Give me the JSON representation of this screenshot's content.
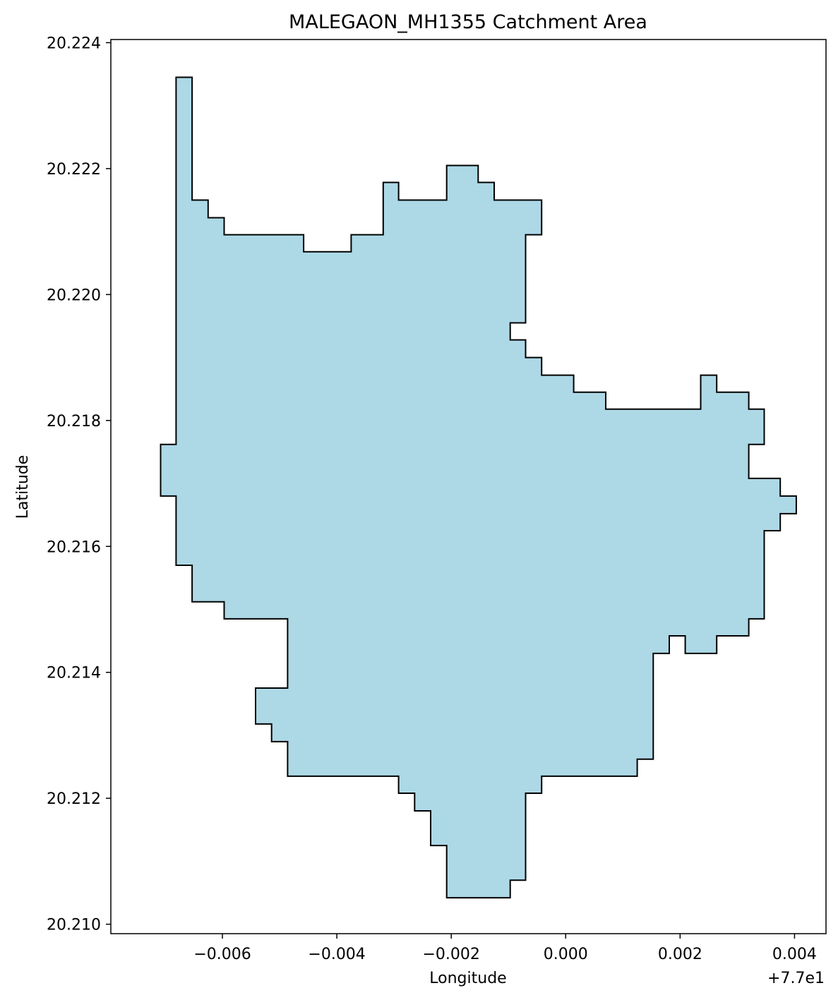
{
  "chart_data": {
    "type": "area",
    "title": "MALEGAON_MH1355 Catchment Area",
    "xlabel": "Longitude",
    "ylabel": "Latitude",
    "x_offset_label": "+7.7e1",
    "xlim": [
      -0.00795,
      0.00455
    ],
    "ylim": [
      20.20985,
      20.22405
    ],
    "x_ticks": [
      -0.006,
      -0.004,
      -0.002,
      0.0,
      0.002,
      0.004
    ],
    "x_tick_labels": [
      "−0.006",
      "−0.004",
      "−0.002",
      "0.000",
      "0.002",
      "0.004"
    ],
    "y_ticks": [
      20.21,
      20.212,
      20.214,
      20.216,
      20.218,
      20.22,
      20.222,
      20.224
    ],
    "y_tick_labels": [
      "20.210",
      "20.212",
      "20.214",
      "20.216",
      "20.218",
      "20.220",
      "20.222",
      "20.224"
    ],
    "fill_color": "#add8e6",
    "edge_color": "#000000",
    "grid": false,
    "polygon": [
      [
        -0.00681,
        20.22345
      ],
      [
        -0.00653,
        20.22345
      ],
      [
        -0.00653,
        20.2215
      ],
      [
        -0.00625,
        20.2215
      ],
      [
        -0.00625,
        20.22122
      ],
      [
        -0.00597,
        20.22122
      ],
      [
        -0.00597,
        20.22095
      ],
      [
        -0.00458,
        20.22095
      ],
      [
        -0.00458,
        20.22068
      ],
      [
        -0.00375,
        20.22068
      ],
      [
        -0.00375,
        20.22095
      ],
      [
        -0.00319,
        20.22095
      ],
      [
        -0.00319,
        20.22178
      ],
      [
        -0.00292,
        20.22178
      ],
      [
        -0.00292,
        20.2215
      ],
      [
        -0.00208,
        20.2215
      ],
      [
        -0.00208,
        20.22205
      ],
      [
        -0.00153,
        20.22205
      ],
      [
        -0.00153,
        20.22178
      ],
      [
        -0.00125,
        20.22178
      ],
      [
        -0.00125,
        20.2215
      ],
      [
        -0.00042,
        20.2215
      ],
      [
        -0.00042,
        20.22095
      ],
      [
        -0.0007,
        20.22095
      ],
      [
        -0.0007,
        20.21955
      ],
      [
        -0.00097,
        20.21955
      ],
      [
        -0.00097,
        20.21928
      ],
      [
        -0.0007,
        20.21928
      ],
      [
        -0.0007,
        20.219
      ],
      [
        -0.00042,
        20.219
      ],
      [
        -0.00042,
        20.21872
      ],
      [
        0.00014,
        20.21872
      ],
      [
        0.00014,
        20.21845
      ],
      [
        0.0007,
        20.21845
      ],
      [
        0.0007,
        20.21818
      ],
      [
        0.00236,
        20.21818
      ],
      [
        0.00236,
        20.21872
      ],
      [
        0.00264,
        20.21872
      ],
      [
        0.00264,
        20.21845
      ],
      [
        0.0032,
        20.21845
      ],
      [
        0.0032,
        20.21818
      ],
      [
        0.00347,
        20.21818
      ],
      [
        0.00347,
        20.21762
      ],
      [
        0.0032,
        20.21762
      ],
      [
        0.0032,
        20.21708
      ],
      [
        0.00375,
        20.21708
      ],
      [
        0.00375,
        20.2168
      ],
      [
        0.00403,
        20.2168
      ],
      [
        0.00403,
        20.21652
      ],
      [
        0.00375,
        20.21652
      ],
      [
        0.00375,
        20.21625
      ],
      [
        0.00347,
        20.21625
      ],
      [
        0.00347,
        20.21485
      ],
      [
        0.0032,
        20.21485
      ],
      [
        0.0032,
        20.21458
      ],
      [
        0.00264,
        20.21458
      ],
      [
        0.00264,
        20.2143
      ],
      [
        0.00209,
        20.2143
      ],
      [
        0.00209,
        20.21458
      ],
      [
        0.00181,
        20.21458
      ],
      [
        0.00181,
        20.2143
      ],
      [
        0.00153,
        20.2143
      ],
      [
        0.00153,
        20.21262
      ],
      [
        0.00125,
        20.21262
      ],
      [
        0.00125,
        20.21235
      ],
      [
        -0.00042,
        20.21235
      ],
      [
        -0.00042,
        20.21208
      ],
      [
        -0.0007,
        20.21208
      ],
      [
        -0.0007,
        20.2107
      ],
      [
        -0.00097,
        20.2107
      ],
      [
        -0.00097,
        20.21042
      ],
      [
        -0.00208,
        20.21042
      ],
      [
        -0.00208,
        20.21125
      ],
      [
        -0.00236,
        20.21125
      ],
      [
        -0.00236,
        20.2118
      ],
      [
        -0.00264,
        20.2118
      ],
      [
        -0.00264,
        20.21208
      ],
      [
        -0.00292,
        20.21208
      ],
      [
        -0.00292,
        20.21235
      ],
      [
        -0.00486,
        20.21235
      ],
      [
        -0.00486,
        20.2129
      ],
      [
        -0.00514,
        20.2129
      ],
      [
        -0.00514,
        20.21318
      ],
      [
        -0.00542,
        20.21318
      ],
      [
        -0.00542,
        20.21375
      ],
      [
        -0.00486,
        20.21375
      ],
      [
        -0.00486,
        20.21485
      ],
      [
        -0.00597,
        20.21485
      ],
      [
        -0.00597,
        20.21512
      ],
      [
        -0.00653,
        20.21512
      ],
      [
        -0.00653,
        20.2157
      ],
      [
        -0.00681,
        20.2157
      ],
      [
        -0.00681,
        20.2168
      ],
      [
        -0.00708,
        20.2168
      ],
      [
        -0.00708,
        20.21762
      ],
      [
        -0.00681,
        20.21762
      ],
      [
        -0.00681,
        20.22345
      ]
    ]
  }
}
